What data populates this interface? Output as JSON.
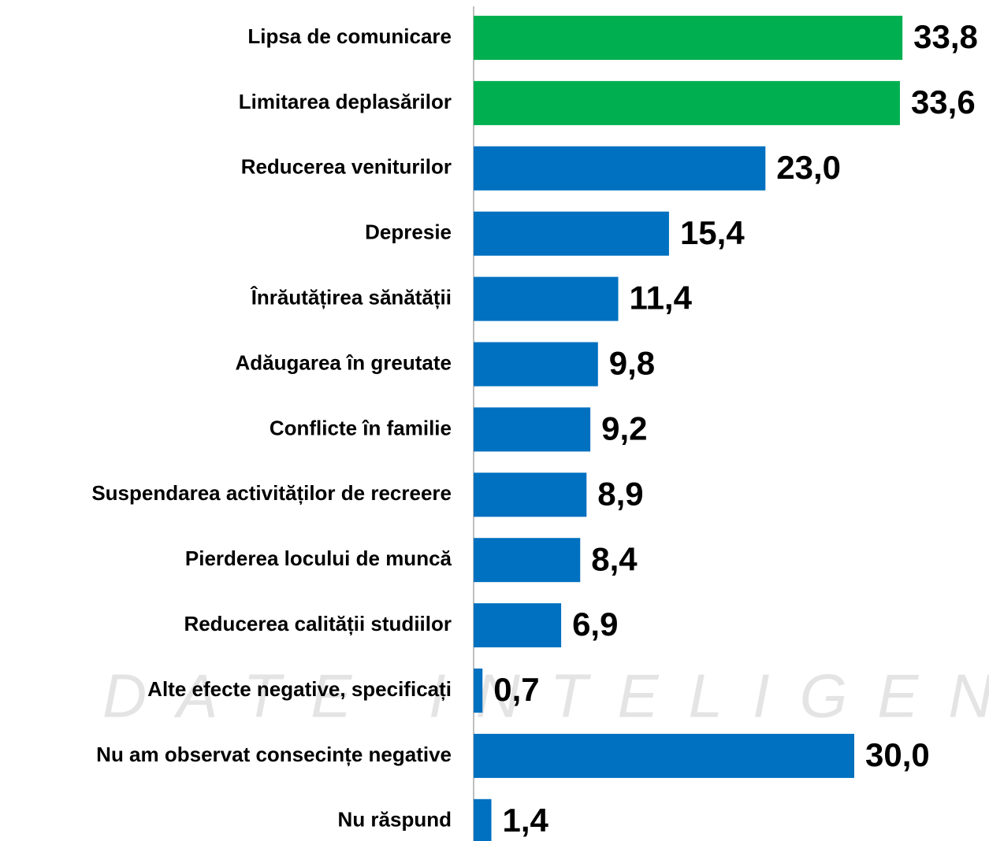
{
  "chart_data": {
    "type": "hbar",
    "categories": [
      "Lipsa de comunicare",
      "Limitarea deplasărilor",
      "Reducerea veniturilor",
      "Depresie",
      "Înrăutățirea sănătății",
      "Adăugarea în greutate",
      "Conflicte în familie",
      "Suspendarea activităților de recreere",
      "Pierderea locului de muncă",
      "Reducerea calității studiilor",
      "Alte efecte negative, specificați",
      "Nu am observat consecințe negative",
      "Nu răspund"
    ],
    "values": [
      33.8,
      33.6,
      23.0,
      15.4,
      11.4,
      9.8,
      9.2,
      8.9,
      8.4,
      6.9,
      0.7,
      30.0,
      1.4
    ],
    "value_labels": [
      "33,8",
      "33,6",
      "23,0",
      "15,4",
      "11,4",
      "9,8",
      "9,2",
      "8,9",
      "8,4",
      "6,9",
      "0,7",
      "30,0",
      "1,4"
    ],
    "colors": [
      "#00b050",
      "#00b050",
      "#0070c0",
      "#0070c0",
      "#0070c0",
      "#0070c0",
      "#0070c0",
      "#0070c0",
      "#0070c0",
      "#0070c0",
      "#0070c0",
      "#0070c0",
      "#0070c0"
    ],
    "xlim": [
      0,
      40
    ],
    "watermark": "DATE INTELIGENTE"
  }
}
